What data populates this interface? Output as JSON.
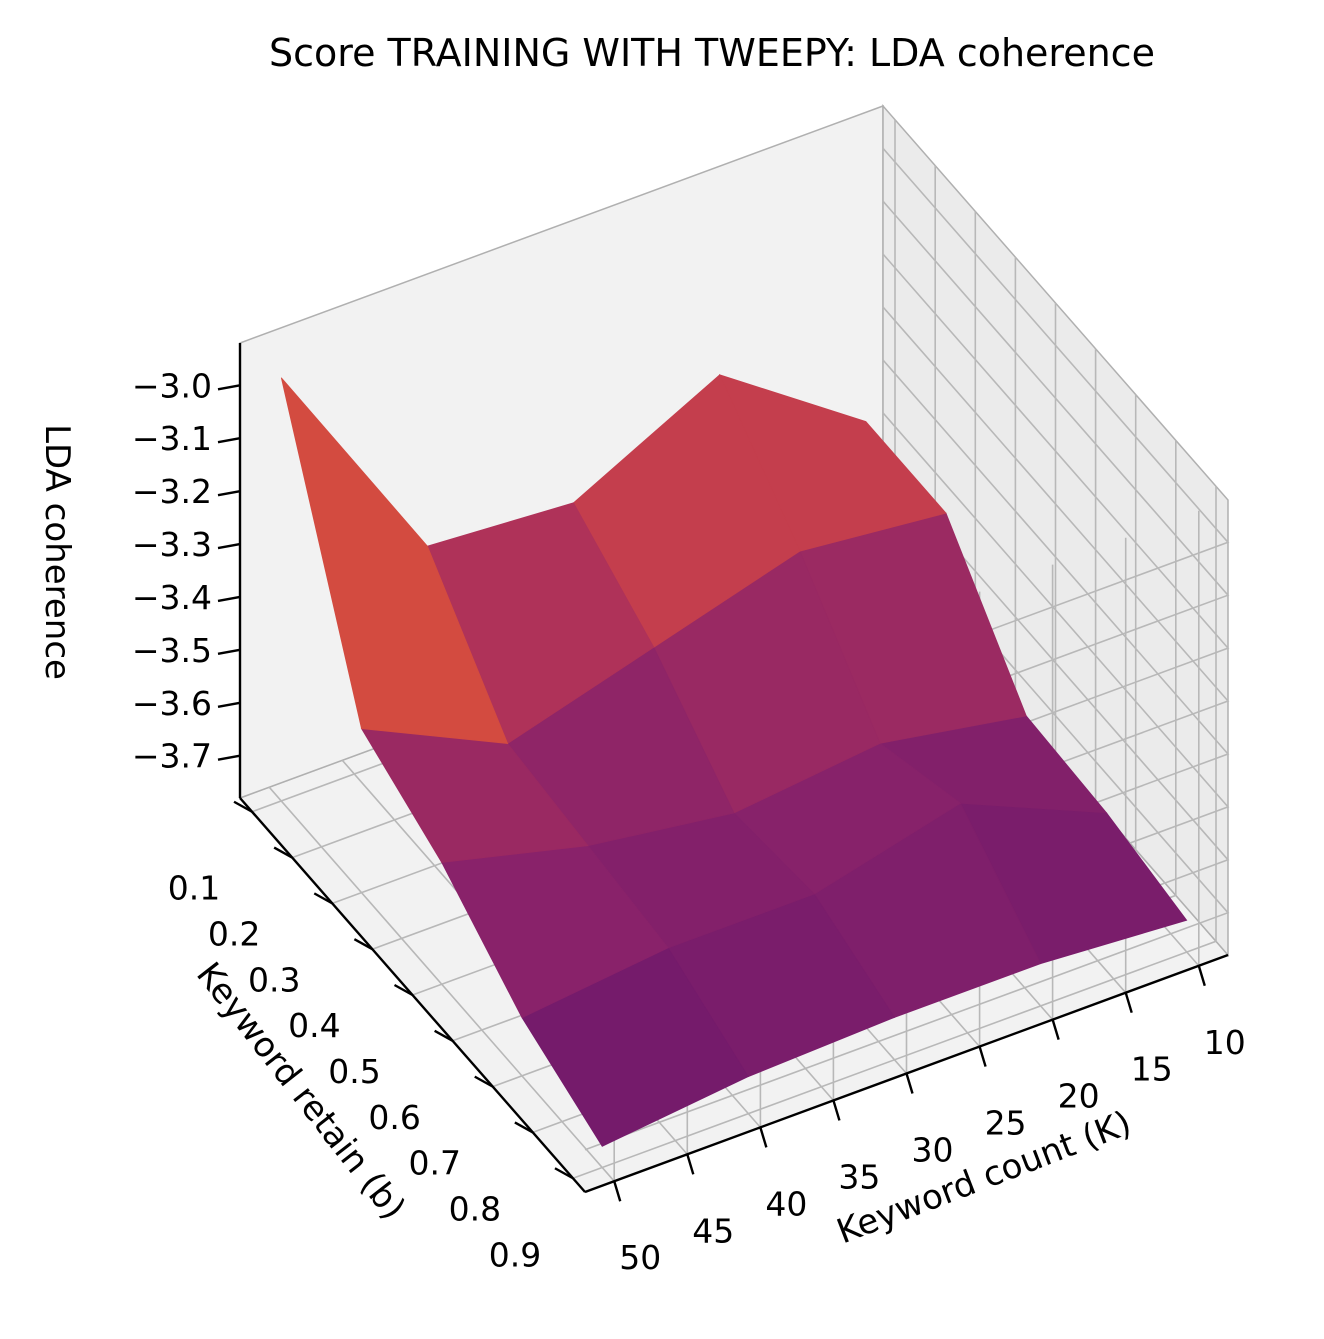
{
  "chart_data": {
    "type": "surface3d",
    "title": "Score TRAINING WITH TWEEPY: LDA coherence",
    "xlabel": "Keyword count (K)",
    "ylabel": "Keyword retain (b)",
    "zlabel": "LDA coherence",
    "x_ticks": [
      "10",
      "15",
      "20",
      "25",
      "30",
      "35",
      "40",
      "45",
      "50"
    ],
    "y_ticks": [
      "0.1",
      "0.2",
      "0.3",
      "0.4",
      "0.5",
      "0.6",
      "0.7",
      "0.8",
      "0.9"
    ],
    "z_ticks": [
      "−3.0",
      "−3.1",
      "−3.2",
      "−3.3",
      "−3.4",
      "−3.5",
      "−3.6",
      "−3.7"
    ],
    "x": [
      10,
      20,
      30,
      40,
      50
    ],
    "y": [
      0.1,
      0.3,
      0.5,
      0.7,
      0.9
    ],
    "xlim": [
      8,
      52
    ],
    "ylim": [
      0.07,
      0.93
    ],
    "zlim": [
      -3.78,
      -2.92
    ],
    "z": [
      [
        -3.47,
        -3.28,
        -3.42,
        -3.4,
        -2.98
      ],
      [
        -3.47,
        -3.44,
        -3.52,
        -3.6,
        -3.47
      ],
      [
        -3.68,
        -3.63,
        -3.66,
        -3.62,
        -3.55
      ],
      [
        -3.69,
        -3.57,
        -3.64,
        -3.64,
        -3.67
      ],
      [
        -3.72,
        -3.7,
        -3.7,
        -3.71,
        -3.74
      ]
    ],
    "colormap": "inferno",
    "colors": {
      "pane": "#f2f2f2",
      "pane_edge": "#b0b0b0",
      "grid": "#b8b8b8",
      "axis": "#000000"
    }
  }
}
